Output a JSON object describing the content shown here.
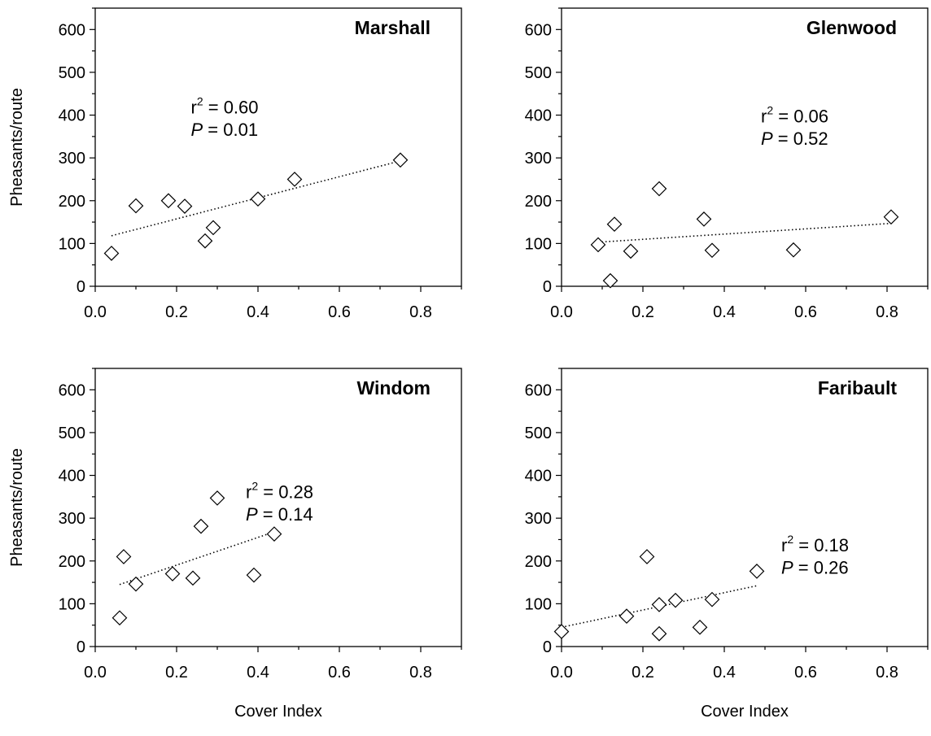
{
  "chart_data": [
    {
      "type": "scatter",
      "title": "Marshall",
      "xlabel": "",
      "ylabel": "Pheasants/route",
      "xlim": [
        0.0,
        0.9
      ],
      "ylim": [
        0,
        650
      ],
      "xticks": [
        0.0,
        0.2,
        0.4,
        0.6,
        0.8
      ],
      "xtick_labels": [
        "0.0",
        "0.2",
        "0.4",
        "0.6",
        "0.8"
      ],
      "yticks": [
        0,
        100,
        200,
        300,
        400,
        500,
        600
      ],
      "ytick_labels": [
        "0",
        "100",
        "200",
        "300",
        "400",
        "500",
        "600"
      ],
      "points": [
        {
          "x": 0.04,
          "y": 77
        },
        {
          "x": 0.1,
          "y": 188
        },
        {
          "x": 0.18,
          "y": 200
        },
        {
          "x": 0.22,
          "y": 187
        },
        {
          "x": 0.27,
          "y": 106
        },
        {
          "x": 0.29,
          "y": 137
        },
        {
          "x": 0.4,
          "y": 204
        },
        {
          "x": 0.49,
          "y": 250
        },
        {
          "x": 0.75,
          "y": 295
        }
      ],
      "fit_line": {
        "x": [
          0.04,
          0.75
        ],
        "y": [
          118,
          293
        ]
      },
      "stats": {
        "r2_prefix": "r",
        "r2_sup": "2",
        "r2_value": " = 0.60",
        "p_label": "P",
        "p_value": " = 0.01"
      }
    },
    {
      "type": "scatter",
      "title": "Glenwood",
      "xlabel": "",
      "ylabel": "",
      "xlim": [
        0.0,
        0.9
      ],
      "ylim": [
        0,
        650
      ],
      "xticks": [
        0.0,
        0.2,
        0.4,
        0.6,
        0.8
      ],
      "xtick_labels": [
        "0.0",
        "0.2",
        "0.4",
        "0.6",
        "0.8"
      ],
      "yticks": [
        0,
        100,
        200,
        300,
        400,
        500,
        600
      ],
      "ytick_labels": [
        "0",
        "100",
        "200",
        "300",
        "400",
        "500",
        "600"
      ],
      "points": [
        {
          "x": 0.09,
          "y": 97
        },
        {
          "x": 0.12,
          "y": 13
        },
        {
          "x": 0.13,
          "y": 145
        },
        {
          "x": 0.17,
          "y": 82
        },
        {
          "x": 0.24,
          "y": 228
        },
        {
          "x": 0.35,
          "y": 157
        },
        {
          "x": 0.37,
          "y": 84
        },
        {
          "x": 0.57,
          "y": 85
        },
        {
          "x": 0.81,
          "y": 162
        }
      ],
      "fit_line": {
        "x": [
          0.09,
          0.81
        ],
        "y": [
          103,
          147
        ]
      },
      "stats": {
        "r2_prefix": "r",
        "r2_sup": "2",
        "r2_value": " = 0.06",
        "p_label": "P",
        "p_value": " = 0.52"
      }
    },
    {
      "type": "scatter",
      "title": "Windom",
      "xlabel": "Cover Index",
      "ylabel": "Pheasants/route",
      "xlim": [
        0.0,
        0.9
      ],
      "ylim": [
        0,
        650
      ],
      "xticks": [
        0.0,
        0.2,
        0.4,
        0.6,
        0.8
      ],
      "xtick_labels": [
        "0.0",
        "0.2",
        "0.4",
        "0.6",
        "0.8"
      ],
      "yticks": [
        0,
        100,
        200,
        300,
        400,
        500,
        600
      ],
      "ytick_labels": [
        "0",
        "100",
        "200",
        "300",
        "400",
        "500",
        "600"
      ],
      "points": [
        {
          "x": 0.06,
          "y": 67
        },
        {
          "x": 0.07,
          "y": 210
        },
        {
          "x": 0.1,
          "y": 146
        },
        {
          "x": 0.19,
          "y": 170
        },
        {
          "x": 0.24,
          "y": 160
        },
        {
          "x": 0.26,
          "y": 281
        },
        {
          "x": 0.3,
          "y": 347
        },
        {
          "x": 0.39,
          "y": 167
        },
        {
          "x": 0.44,
          "y": 263
        }
      ],
      "fit_line": {
        "x": [
          0.06,
          0.44
        ],
        "y": [
          145,
          268
        ]
      },
      "stats": {
        "r2_prefix": "r",
        "r2_sup": "2",
        "r2_value": " = 0.28",
        "p_label": "P",
        "p_value": " = 0.14"
      }
    },
    {
      "type": "scatter",
      "title": "Faribault",
      "xlabel": "Cover Index",
      "ylabel": "",
      "xlim": [
        0.0,
        0.9
      ],
      "ylim": [
        0,
        650
      ],
      "xticks": [
        0.0,
        0.2,
        0.4,
        0.6,
        0.8
      ],
      "xtick_labels": [
        "0.0",
        "0.2",
        "0.4",
        "0.6",
        "0.8"
      ],
      "yticks": [
        0,
        100,
        200,
        300,
        400,
        500,
        600
      ],
      "ytick_labels": [
        "0",
        "100",
        "200",
        "300",
        "400",
        "500",
        "600"
      ],
      "points": [
        {
          "x": 0.0,
          "y": 35
        },
        {
          "x": 0.16,
          "y": 71
        },
        {
          "x": 0.21,
          "y": 210
        },
        {
          "x": 0.24,
          "y": 98
        },
        {
          "x": 0.24,
          "y": 30
        },
        {
          "x": 0.28,
          "y": 108
        },
        {
          "x": 0.34,
          "y": 45
        },
        {
          "x": 0.37,
          "y": 110
        },
        {
          "x": 0.48,
          "y": 176
        }
      ],
      "fit_line": {
        "x": [
          0.0,
          0.48
        ],
        "y": [
          45,
          142
        ]
      },
      "stats": {
        "r2_prefix": "r",
        "r2_sup": "2",
        "r2_value": " = 0.18",
        "p_label": "P",
        "p_value": " = 0.26"
      }
    }
  ]
}
